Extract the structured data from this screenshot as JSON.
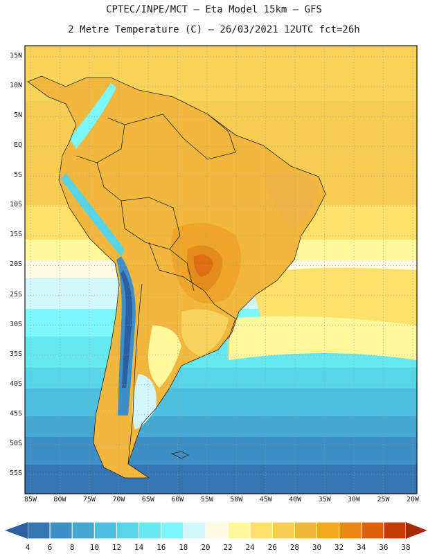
{
  "header": {
    "line1": "CPTEC/INPE/MCT –  Eta Model 15km – GFS",
    "line2": "2 Metre Temperature (C) – 26/03/2021 12UTC fct=26h"
  },
  "axes": {
    "lat_labels": [
      "15N",
      "10N",
      "5N",
      "EQ",
      "5S",
      "10S",
      "15S",
      "20S",
      "25S",
      "30S",
      "35S",
      "40S",
      "45S",
      "50S",
      "55S"
    ],
    "lon_labels": [
      "85W",
      "80W",
      "75W",
      "70W",
      "65W",
      "60W",
      "55W",
      "50W",
      "45W",
      "40W",
      "35W",
      "30W",
      "25W",
      "20W"
    ]
  },
  "colorbar": {
    "levels": [
      "4",
      "6",
      "8",
      "10",
      "12",
      "14",
      "16",
      "18",
      "20",
      "22",
      "24",
      "26",
      "28",
      "30",
      "32",
      "34",
      "36",
      "38"
    ],
    "colors": [
      "#2b5fa0",
      "#3575b3",
      "#3d8fc4",
      "#45a8d2",
      "#4ec0df",
      "#58d4e8",
      "#66e8f0",
      "#7cf7fb",
      "#d2f7fb",
      "#fffbe5",
      "#fff89a",
      "#fde068",
      "#f6cc52",
      "#efb93c",
      "#f0a81e",
      "#e88714",
      "#dd600c",
      "#c43c06",
      "#a52a05"
    ]
  }
}
